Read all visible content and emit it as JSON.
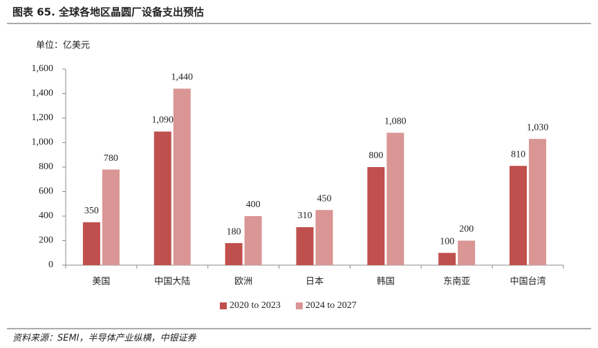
{
  "chart_data": {
    "type": "bar",
    "title": "图表 65. 全球各地区晶圆厂设备支出预估",
    "unit_label": "单位：亿美元",
    "source": "资料来源：SEMI，半导体产业纵横，中银证券",
    "categories": [
      "美国",
      "中国大陆",
      "欧洲",
      "日本",
      "韩国",
      "东南亚",
      "中国台湾"
    ],
    "series": [
      {
        "name": "2020 to 2023",
        "color": "#c0504d",
        "values": [
          350,
          1090,
          180,
          310,
          800,
          100,
          810
        ],
        "value_labels": [
          "350",
          "1,090",
          "180",
          "310",
          "800",
          "100",
          "810"
        ]
      },
      {
        "name": "2024 to 2027",
        "color": "#d99694",
        "values": [
          780,
          1440,
          400,
          450,
          1080,
          200,
          1030
        ],
        "value_labels": [
          "780",
          "1,440",
          "400",
          "450",
          "1,080",
          "200",
          "1,030"
        ]
      }
    ],
    "ylim": [
      0,
      1600
    ],
    "yticks": [
      0,
      200,
      400,
      600,
      800,
      {
        "value": 1000,
        "label": "1,000"
      },
      {
        "value": 1200,
        "label": "1,200"
      },
      {
        "value": 1400,
        "label": "1,400"
      },
      {
        "value": 1600,
        "label": "1,600"
      }
    ],
    "legend": "bottom"
  }
}
